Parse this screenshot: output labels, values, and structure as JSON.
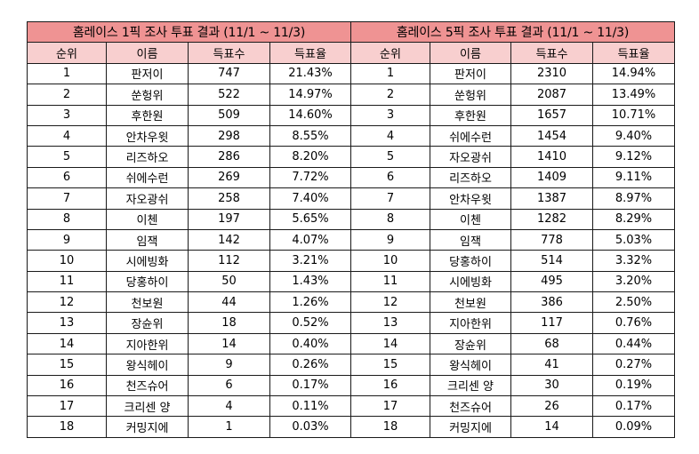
{
  "left": {
    "title": "홈레이스 1픽 조사 투표 결과 (11/1 ~ 11/3)",
    "headers": [
      "순위",
      "이름",
      "득표수",
      "득표율"
    ],
    "rows": [
      [
        "1",
        "판저이",
        "747",
        "21.43%"
      ],
      [
        "2",
        "쑨헝위",
        "522",
        "14.97%"
      ],
      [
        "3",
        "후한원",
        "509",
        "14.60%"
      ],
      [
        "4",
        "안차우윗",
        "298",
        "8.55%"
      ],
      [
        "5",
        "리즈하오",
        "286",
        "8.20%"
      ],
      [
        "6",
        "쉬에수런",
        "269",
        "7.72%"
      ],
      [
        "7",
        "자오광쉬",
        "258",
        "7.40%"
      ],
      [
        "8",
        "이첸",
        "197",
        "5.65%"
      ],
      [
        "9",
        "임잭",
        "142",
        "4.07%"
      ],
      [
        "10",
        "시에빙화",
        "112",
        "3.21%"
      ],
      [
        "11",
        "당홍하이",
        "50",
        "1.43%"
      ],
      [
        "12",
        "천보원",
        "44",
        "1.26%"
      ],
      [
        "13",
        "장슌위",
        "18",
        "0.52%"
      ],
      [
        "14",
        "지아한위",
        "14",
        "0.40%"
      ],
      [
        "15",
        "왕식헤이",
        "9",
        "0.26%"
      ],
      [
        "16",
        "천즈슈어",
        "6",
        "0.17%"
      ],
      [
        "17",
        "크리센 양",
        "4",
        "0.11%"
      ],
      [
        "18",
        "커밍지에",
        "1",
        "0.03%"
      ]
    ]
  },
  "right": {
    "title": "홈레이스 5픽 조사 투표 결과 (11/1 ~ 11/3)",
    "headers": [
      "순위",
      "이름",
      "득표수",
      "득표율"
    ],
    "rows": [
      [
        "1",
        "판저이",
        "2310",
        "14.94%"
      ],
      [
        "2",
        "쑨헝위",
        "2087",
        "13.49%"
      ],
      [
        "3",
        "후한원",
        "1657",
        "10.71%"
      ],
      [
        "4",
        "쉬에수런",
        "1454",
        "9.40%"
      ],
      [
        "5",
        "자오광쉬",
        "1410",
        "9.12%"
      ],
      [
        "6",
        "리즈하오",
        "1409",
        "9.11%"
      ],
      [
        "7",
        "안차우윗",
        "1387",
        "8.97%"
      ],
      [
        "8",
        "이첸",
        "1282",
        "8.29%"
      ],
      [
        "9",
        "임잭",
        "778",
        "5.03%"
      ],
      [
        "10",
        "당홍하이",
        "514",
        "3.32%"
      ],
      [
        "11",
        "시에빙화",
        "495",
        "3.20%"
      ],
      [
        "12",
        "천보원",
        "386",
        "2.50%"
      ],
      [
        "13",
        "지아한위",
        "117",
        "0.76%"
      ],
      [
        "14",
        "장슌위",
        "68",
        "0.44%"
      ],
      [
        "15",
        "왕식헤이",
        "41",
        "0.27%"
      ],
      [
        "16",
        "크리센 양",
        "30",
        "0.19%"
      ],
      [
        "17",
        "천즈슈어",
        "26",
        "0.17%"
      ],
      [
        "18",
        "커밍지에",
        "14",
        "0.09%"
      ]
    ]
  },
  "colors": {
    "title_bg": "#ef9393",
    "header_bg": "#f8cfcf",
    "border": "#1a1a1a"
  }
}
